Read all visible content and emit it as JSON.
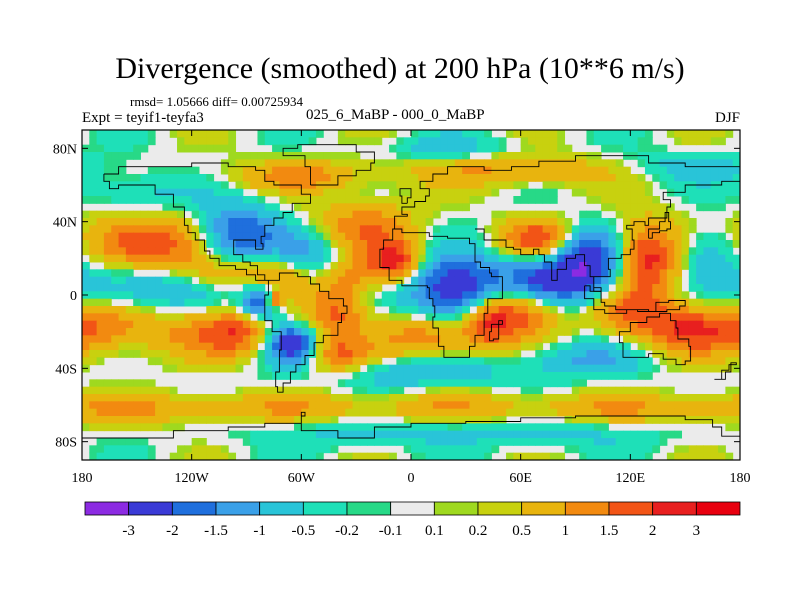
{
  "title": "Divergence (smoothed) at 200 hPa (10**6 m/s)",
  "stats_text": "rmsd= 1.05666 diff= 0.00725934",
  "expt_text": "Expt = teyif1-teyfa3",
  "period_text": "025_6_MaBP - 000_0_MaBP",
  "season": "DJF",
  "chart_data": {
    "type": "heatmap",
    "title": "Divergence (smoothed) at 200 hPa (10**6 m/s)",
    "xlabel": "",
    "ylabel": "",
    "xlim": [
      -180,
      180
    ],
    "ylim": [
      -90,
      90
    ],
    "x_ticks": [
      {
        "value": -180,
        "label": "180"
      },
      {
        "value": -120,
        "label": "120W"
      },
      {
        "value": -60,
        "label": "60W"
      },
      {
        "value": 0,
        "label": "0"
      },
      {
        "value": 60,
        "label": "60E"
      },
      {
        "value": 120,
        "label": "120E"
      },
      {
        "value": 180,
        "label": "180"
      }
    ],
    "y_ticks": [
      {
        "value": 80,
        "label": "80N"
      },
      {
        "value": 40,
        "label": "40N"
      },
      {
        "value": 0,
        "label": "0"
      },
      {
        "value": -40,
        "label": "40S"
      },
      {
        "value": -80,
        "label": "80S"
      }
    ],
    "colorbar": {
      "levels": [
        "-3",
        "-2",
        "-1.5",
        "-1",
        "-0.5",
        "-0.2",
        "-0.1",
        "0.1",
        "0.2",
        "0.5",
        "1",
        "1.5",
        "2",
        "3"
      ],
      "colors": [
        "#8c2be2",
        "#3a3ad6",
        "#1f6fdd",
        "#3aa0e8",
        "#29c4d8",
        "#1ee0b8",
        "#27d987",
        "#ebebeb",
        "#9fd91f",
        "#c8d10f",
        "#e8b40e",
        "#f28a10",
        "#f25416",
        "#e81f1f",
        "#e8000f"
      ]
    },
    "blobs": [
      {
        "lon": -150,
        "lat": 28,
        "value": 2.2,
        "rlon": 26,
        "rlat": 11
      },
      {
        "lon": -145,
        "lat": 5,
        "value": -1.3,
        "rlon": 35,
        "rlat": 10
      },
      {
        "lon": -170,
        "lat": -18,
        "value": 1.3,
        "rlon": 18,
        "rlat": 10
      },
      {
        "lon": -120,
        "lat": -20,
        "value": 1.0,
        "rlon": 22,
        "rlat": 10
      },
      {
        "lon": -150,
        "lat": 55,
        "value": -0.8,
        "rlon": 20,
        "rlat": 8
      },
      {
        "lon": -95,
        "lat": 32,
        "value": -2.3,
        "rlon": 16,
        "rlat": 12
      },
      {
        "lon": -110,
        "lat": 12,
        "value": 1.3,
        "rlon": 16,
        "rlat": 8
      },
      {
        "lon": -77,
        "lat": 10,
        "value": 1.6,
        "rlon": 14,
        "rlat": 10
      },
      {
        "lon": -58,
        "lat": 22,
        "value": -1.2,
        "rlon": 14,
        "rlat": 9
      },
      {
        "lon": -25,
        "lat": 38,
        "value": 1.3,
        "rlon": 20,
        "rlat": 10
      },
      {
        "lon": -30,
        "lat": 12,
        "value": 1.0,
        "rlon": 10,
        "rlat": 8
      },
      {
        "lon": -82,
        "lat": -3,
        "value": -2.8,
        "rlon": 8,
        "rlat": 7
      },
      {
        "lon": -75,
        "lat": -3,
        "value": 2.5,
        "rlon": 3,
        "rlat": 3
      },
      {
        "lon": -65,
        "lat": -27,
        "value": -2.6,
        "rlon": 9,
        "rlat": 7
      },
      {
        "lon": -95,
        "lat": -20,
        "value": 1.4,
        "rlon": 12,
        "rlat": 9
      },
      {
        "lon": -40,
        "lat": -10,
        "value": 1.6,
        "rlon": 11,
        "rlat": 13
      },
      {
        "lon": -40,
        "lat": -35,
        "value": 1.3,
        "rlon": 14,
        "rlat": 7
      },
      {
        "lon": -8,
        "lat": 18,
        "value": 2.2,
        "rlon": 10,
        "rlat": 8
      },
      {
        "lon": 25,
        "lat": 2,
        "value": -3.0,
        "rlon": 18,
        "rlat": 13
      },
      {
        "lon": 10,
        "lat": -22,
        "value": 1.6,
        "rlon": 18,
        "rlat": 9
      },
      {
        "lon": 42,
        "lat": -18,
        "value": 1.3,
        "rlon": 10,
        "rlat": 10
      },
      {
        "lon": 55,
        "lat": -8,
        "value": 2.3,
        "rlon": 18,
        "rlat": 10
      },
      {
        "lon": 80,
        "lat": 8,
        "value": -2.6,
        "rlon": 22,
        "rlat": 10
      },
      {
        "lon": 68,
        "lat": 30,
        "value": 1.8,
        "rlon": 14,
        "rlat": 8
      },
      {
        "lon": 98,
        "lat": 22,
        "value": -2.1,
        "rlon": 12,
        "rlat": 10
      },
      {
        "lon": 130,
        "lat": 20,
        "value": 2.4,
        "rlon": 13,
        "rlat": 14
      },
      {
        "lon": 150,
        "lat": -18,
        "value": 1.9,
        "rlon": 20,
        "rlat": 10
      },
      {
        "lon": 118,
        "lat": -8,
        "value": 1.2,
        "rlon": 14,
        "rlat": 9
      },
      {
        "lon": 165,
        "lat": 25,
        "value": -1.3,
        "rlon": 16,
        "rlat": 10
      },
      {
        "lon": 95,
        "lat": -35,
        "value": -1.0,
        "rlon": 25,
        "rlat": 7
      },
      {
        "lon": 0,
        "lat": -42,
        "value": -1.0,
        "rlon": 40,
        "rlat": 6
      },
      {
        "lon": -90,
        "lat": -62,
        "value": 0.8,
        "rlon": 80,
        "rlat": 6
      },
      {
        "lon": 100,
        "lat": -62,
        "value": 0.8,
        "rlon": 80,
        "rlat": 6
      },
      {
        "lon": -30,
        "lat": -75,
        "value": -0.6,
        "rlon": 45,
        "rlat": 6
      },
      {
        "lon": 80,
        "lat": -75,
        "value": -0.6,
        "rlon": 45,
        "rlat": 6
      },
      {
        "lon": -60,
        "lat": 65,
        "value": 1.1,
        "rlon": 30,
        "rlat": 6
      },
      {
        "lon": 60,
        "lat": 68,
        "value": 1.1,
        "rlon": 40,
        "rlat": 6
      },
      {
        "lon": 20,
        "lat": 80,
        "value": -0.7,
        "rlon": 25,
        "rlat": 5
      },
      {
        "lon": 150,
        "lat": 70,
        "value": -0.7,
        "rlon": 30,
        "rlat": 6
      }
    ]
  }
}
